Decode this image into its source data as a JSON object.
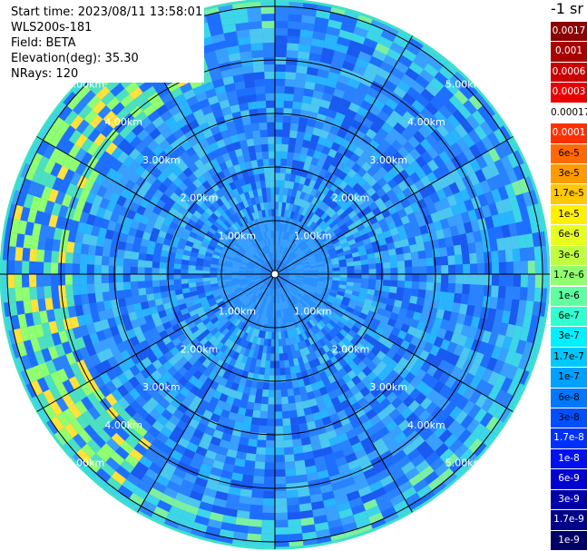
{
  "info": {
    "start_time": "Start time: 2023/08/11 13:58:01",
    "instrument": "WLS200s-181",
    "field": "Field: BETA",
    "elevation": "Elevation(deg): 35.30",
    "nrays": "NRays: 120"
  },
  "colorbar": {
    "unit": "-1 sr",
    "labels": [
      "0.0017",
      "0.001",
      "0.0006",
      "0.0003",
      "0.00017",
      "0.0001",
      "6e-5",
      "3e-5",
      "1.7e-5",
      "1e-5",
      "6e-6",
      "3e-6",
      "1.7e-6",
      "1e-6",
      "6e-7",
      "3e-7",
      "1.7e-7",
      "1e-7",
      "6e-8",
      "3e-8",
      "1.7e-8",
      "1e-8",
      "6e-9",
      "3e-9",
      "1.7e-9",
      "1e-9"
    ],
    "colors": [
      "#8b0000",
      "#a80000",
      "#c80000",
      "#e80000",
      "#ffffff",
      "#ff3000",
      "#ff6a00",
      "#ff9a00",
      "#ffc800",
      "#fff000",
      "#e8ff20",
      "#c0ff40",
      "#90ff70",
      "#60ffa0",
      "#30ffd0",
      "#00f0ff",
      "#00c8ff",
      "#00a0ff",
      "#0078ff",
      "#0050ff",
      "#0030ff",
      "#0010f0",
      "#0000d0",
      "#0000a8",
      "#000088",
      "#000066"
    ],
    "text_colors": [
      "#ffffff",
      "#ffffff",
      "#ffffff",
      "#ffffff",
      "#000000",
      "#ffffff",
      "#000000",
      "#000000",
      "#000000",
      "#000000",
      "#000000",
      "#000000",
      "#000000",
      "#000000",
      "#000000",
      "#000000",
      "#000000",
      "#000000",
      "#000000",
      "#000000",
      "#ffffff",
      "#ffffff",
      "#ffffff",
      "#ffffff",
      "#ffffff",
      "#ffffff"
    ]
  },
  "range_rings": {
    "labels": [
      "1.00km",
      "2.00km",
      "3.00km",
      "4.00km",
      "5.00km"
    ]
  }
}
